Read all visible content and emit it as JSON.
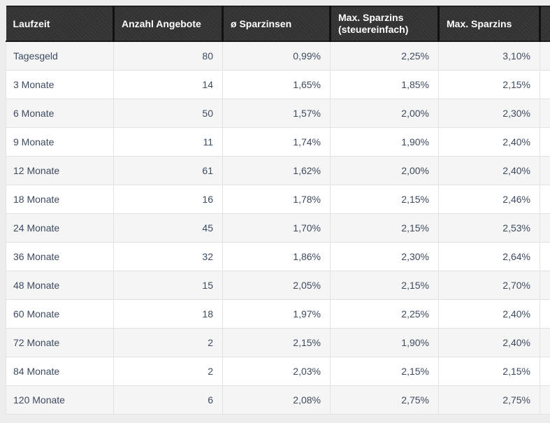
{
  "chart_data": {
    "type": "table",
    "columns": [
      "Laufzeit",
      "Anzahl Angebote",
      "ø Sparzinsen",
      "Max. Sparzins (steuereinfach)",
      "Max. Sparzins"
    ],
    "rows": [
      [
        "Tagesgeld",
        "80",
        "0,99%",
        "2,25%",
        "3,10%"
      ],
      [
        "3 Monate",
        "14",
        "1,65%",
        "1,85%",
        "2,15%"
      ],
      [
        "6 Monate",
        "50",
        "1,57%",
        "2,00%",
        "2,30%"
      ],
      [
        "9 Monate",
        "11",
        "1,74%",
        "1,90%",
        "2,40%"
      ],
      [
        "12 Monate",
        "61",
        "1,62%",
        "2,00%",
        "2,40%"
      ],
      [
        "18 Monate",
        "16",
        "1,78%",
        "2,15%",
        "2,46%"
      ],
      [
        "24 Monate",
        "45",
        "1,70%",
        "2,15%",
        "2,53%"
      ],
      [
        "36 Monate",
        "32",
        "1,86%",
        "2,30%",
        "2,64%"
      ],
      [
        "48 Monate",
        "15",
        "2,05%",
        "2,15%",
        "2,70%"
      ],
      [
        "60 Monate",
        "18",
        "1,97%",
        "2,25%",
        "2,40%"
      ],
      [
        "72 Monate",
        "2",
        "2,15%",
        "1,90%",
        "2,40%"
      ],
      [
        "84 Monate",
        "2",
        "2,03%",
        "2,15%",
        "2,15%"
      ],
      [
        "120 Monate",
        "6",
        "2,08%",
        "2,75%",
        "2,75%"
      ]
    ],
    "layout": {
      "legend": "none",
      "grid": "cell-borders",
      "striped_rows": true,
      "table_cut_off_right": true
    },
    "colors": {
      "header_background": "#333333",
      "header_text": "#ffffff",
      "body_text": "#3d4b60",
      "stripe_row": "#f5f5f5",
      "plain_row": "#ffffff",
      "cell_border": "#e2e2e2",
      "page_background": "#ededed"
    }
  }
}
